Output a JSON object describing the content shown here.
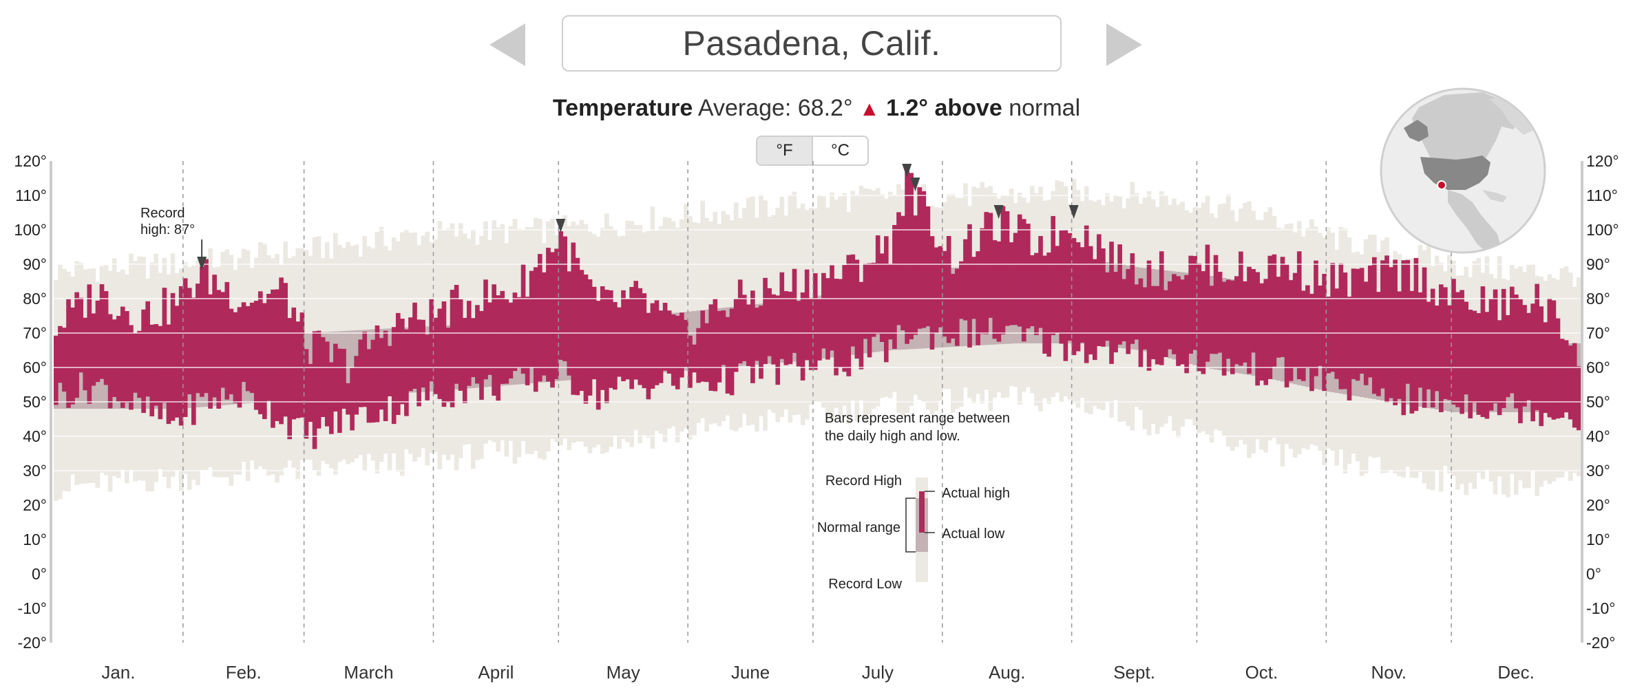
{
  "header": {
    "city": "Pasadena, Calif.",
    "prev_label": "previous city",
    "next_label": "next city"
  },
  "summary": {
    "label": "Temperature",
    "average_text": "Average: 68.2°",
    "arrow": "▲",
    "delta_text": "1.2° above",
    "suffix": "normal"
  },
  "units": {
    "f": "°F",
    "c": "°C",
    "selected": "°F"
  },
  "colors": {
    "actual": "#b0295b",
    "normal": "#c4b2b5",
    "record": "#ebe9e2",
    "accent": "#c8102e"
  },
  "chart_data": {
    "type": "bar",
    "title": "Temperature",
    "ylim": [
      -20,
      120
    ],
    "yticks": [
      120,
      110,
      100,
      90,
      80,
      70,
      60,
      50,
      40,
      30,
      20,
      10,
      0,
      -10,
      -20
    ],
    "ytick_labels": [
      "120°",
      "110°",
      "100°",
      "90°",
      "80°",
      "70°",
      "60°",
      "50°",
      "40°",
      "30°",
      "20°",
      "10°",
      "0°",
      "-10°",
      "-20°"
    ],
    "months": [
      "Jan.",
      "Feb.",
      "March",
      "April",
      "May",
      "June",
      "July",
      "Aug.",
      "Sept.",
      "Oct.",
      "Nov.",
      "Dec."
    ],
    "grid": true,
    "description": "Bars represent range between the daily high and low.",
    "legend": {
      "description_lines": [
        "Bars represent range between",
        "the daily high and low."
      ],
      "record_high": "Record High",
      "normal_range": "Normal range",
      "record_low": "Record Low",
      "actual_high": "Actual high",
      "actual_low": "Actual low"
    },
    "annotation": {
      "lines": [
        "Record",
        "high: 87°"
      ],
      "day": 35,
      "value": 87
    },
    "record_markers": [
      {
        "day": 121,
        "value": 98
      },
      {
        "day": 204,
        "value": 114
      },
      {
        "day": 206,
        "value": 110
      },
      {
        "day": 226,
        "value": 102
      },
      {
        "day": 244,
        "value": 102
      }
    ],
    "anchors": {
      "normal_high": [
        [
          0,
          68
        ],
        [
          30,
          68
        ],
        [
          60,
          70
        ],
        [
          90,
          72
        ],
        [
          120,
          74
        ],
        [
          150,
          76
        ],
        [
          180,
          80
        ],
        [
          200,
          86
        ],
        [
          215,
          89
        ],
        [
          230,
          90
        ],
        [
          245,
          92
        ],
        [
          260,
          89
        ],
        [
          275,
          87
        ],
        [
          290,
          84
        ],
        [
          305,
          79
        ],
        [
          320,
          74
        ],
        [
          335,
          70
        ],
        [
          350,
          67
        ],
        [
          365,
          67
        ]
      ],
      "normal_low": [
        [
          0,
          48
        ],
        [
          30,
          48
        ],
        [
          60,
          51
        ],
        [
          90,
          53
        ],
        [
          120,
          56
        ],
        [
          150,
          59
        ],
        [
          180,
          62
        ],
        [
          200,
          65
        ],
        [
          215,
          66
        ],
        [
          230,
          67
        ],
        [
          245,
          67
        ],
        [
          260,
          65
        ],
        [
          275,
          60
        ],
        [
          290,
          57
        ],
        [
          305,
          53
        ],
        [
          320,
          50
        ],
        [
          335,
          47
        ],
        [
          350,
          47
        ],
        [
          365,
          47
        ]
      ],
      "record_high": [
        [
          0,
          88
        ],
        [
          30,
          90
        ],
        [
          60,
          94
        ],
        [
          90,
          99
        ],
        [
          120,
          100
        ],
        [
          150,
          104
        ],
        [
          180,
          108
        ],
        [
          200,
          110
        ],
        [
          215,
          110
        ],
        [
          230,
          110
        ],
        [
          245,
          111
        ],
        [
          260,
          110
        ],
        [
          275,
          108
        ],
        [
          290,
          104
        ],
        [
          305,
          98
        ],
        [
          320,
          94
        ],
        [
          335,
          90
        ],
        [
          350,
          88
        ],
        [
          365,
          87
        ]
      ],
      "record_low": [
        [
          0,
          25
        ],
        [
          30,
          28
        ],
        [
          60,
          30
        ],
        [
          90,
          33
        ],
        [
          120,
          37
        ],
        [
          150,
          41
        ],
        [
          180,
          46
        ],
        [
          200,
          49
        ],
        [
          215,
          50
        ],
        [
          230,
          51
        ],
        [
          245,
          50
        ],
        [
          260,
          45
        ],
        [
          275,
          40
        ],
        [
          290,
          36
        ],
        [
          305,
          33
        ],
        [
          320,
          30
        ],
        [
          335,
          27
        ],
        [
          350,
          26
        ],
        [
          365,
          27
        ]
      ],
      "actual_high": [
        [
          0,
          72
        ],
        [
          10,
          82
        ],
        [
          20,
          75
        ],
        [
          28,
          78
        ],
        [
          35,
          87
        ],
        [
          45,
          80
        ],
        [
          55,
          82
        ],
        [
          60,
          67
        ],
        [
          70,
          61
        ],
        [
          80,
          72
        ],
        [
          90,
          75
        ],
        [
          100,
          80
        ],
        [
          110,
          82
        ],
        [
          121,
          98
        ],
        [
          130,
          78
        ],
        [
          140,
          80
        ],
        [
          150,
          70
        ],
        [
          160,
          78
        ],
        [
          170,
          82
        ],
        [
          180,
          85
        ],
        [
          190,
          88
        ],
        [
          200,
          96
        ],
        [
          204,
          114
        ],
        [
          206,
          110
        ],
        [
          215,
          92
        ],
        [
          226,
          102
        ],
        [
          235,
          96
        ],
        [
          244,
          102
        ],
        [
          255,
          90
        ],
        [
          265,
          88
        ],
        [
          275,
          90
        ],
        [
          285,
          88
        ],
        [
          295,
          90
        ],
        [
          305,
          85
        ],
        [
          315,
          86
        ],
        [
          325,
          88
        ],
        [
          335,
          80
        ],
        [
          345,
          78
        ],
        [
          355,
          80
        ],
        [
          365,
          66
        ]
      ],
      "actual_low": [
        [
          0,
          52
        ],
        [
          10,
          55
        ],
        [
          20,
          48
        ],
        [
          28,
          44
        ],
        [
          35,
          50
        ],
        [
          45,
          52
        ],
        [
          55,
          45
        ],
        [
          60,
          40
        ],
        [
          70,
          45
        ],
        [
          80,
          48
        ],
        [
          90,
          52
        ],
        [
          100,
          54
        ],
        [
          110,
          55
        ],
        [
          121,
          58
        ],
        [
          130,
          52
        ],
        [
          140,
          55
        ],
        [
          150,
          56
        ],
        [
          160,
          56
        ],
        [
          170,
          59
        ],
        [
          180,
          60
        ],
        [
          190,
          62
        ],
        [
          200,
          66
        ],
        [
          204,
          70
        ],
        [
          206,
          70
        ],
        [
          215,
          70
        ],
        [
          226,
          70
        ],
        [
          235,
          68
        ],
        [
          244,
          66
        ],
        [
          255,
          64
        ],
        [
          265,
          63
        ],
        [
          275,
          62
        ],
        [
          285,
          60
        ],
        [
          295,
          58
        ],
        [
          305,
          56
        ],
        [
          315,
          53
        ],
        [
          325,
          50
        ],
        [
          335,
          50
        ],
        [
          345,
          49
        ],
        [
          355,
          48
        ],
        [
          365,
          46
        ]
      ]
    }
  }
}
